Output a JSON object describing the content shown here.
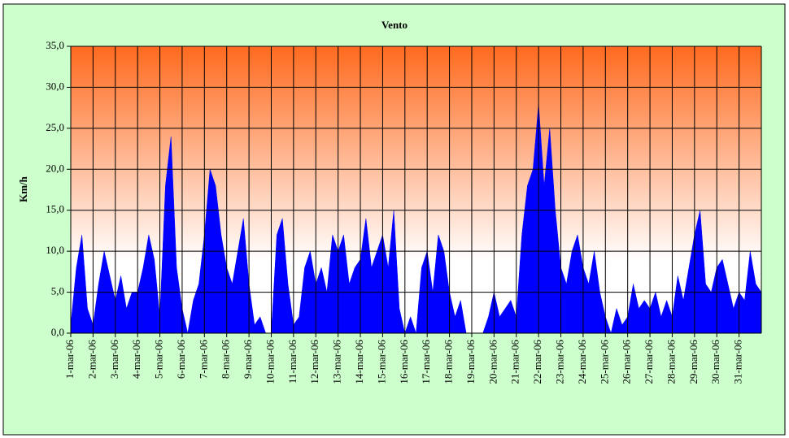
{
  "chart_data": {
    "type": "area",
    "title": "Vento",
    "ylabel": "Km/h",
    "series": [
      {
        "name": "Vento",
        "color": "#0000ff",
        "x": [
          1,
          1.25,
          1.5,
          1.75,
          2,
          2.25,
          2.5,
          2.75,
          3,
          3.25,
          3.5,
          3.75,
          4,
          4.25,
          4.5,
          4.75,
          5,
          5.25,
          5.5,
          5.75,
          6,
          6.25,
          6.5,
          6.75,
          7,
          7.25,
          7.5,
          7.75,
          8,
          8.25,
          8.5,
          8.75,
          9,
          9.25,
          9.5,
          9.75,
          10,
          10.25,
          10.5,
          10.75,
          11,
          11.25,
          11.5,
          11.75,
          12,
          12.25,
          12.5,
          12.75,
          13,
          13.25,
          13.5,
          13.75,
          14,
          14.25,
          14.5,
          14.75,
          15,
          15.25,
          15.5,
          15.75,
          16,
          16.25,
          16.5,
          16.75,
          17,
          17.25,
          17.5,
          17.75,
          18,
          18.25,
          18.5,
          18.75,
          19,
          19.25,
          19.5,
          19.75,
          20,
          20.25,
          20.5,
          20.75,
          21,
          21.25,
          21.5,
          21.75,
          22,
          22.25,
          22.5,
          22.75,
          23,
          23.25,
          23.5,
          23.75,
          24,
          24.25,
          24.5,
          24.75,
          25,
          25.25,
          25.5,
          25.75,
          26,
          26.25,
          26.5,
          26.75,
          27,
          27.25,
          27.5,
          27.75,
          28,
          28.25,
          28.5,
          28.75,
          29,
          29.25,
          29.5,
          29.75,
          30,
          30.25,
          30.5,
          30.75,
          31,
          31.25,
          31.5,
          31.75,
          32
        ],
        "values": [
          1,
          8,
          12,
          3,
          1,
          6,
          10,
          7,
          4,
          7,
          3,
          5,
          5,
          8,
          12,
          9,
          2,
          18,
          24,
          8,
          3,
          0,
          4,
          6,
          12,
          20,
          18,
          12,
          8,
          6,
          10,
          14,
          6,
          1,
          2,
          0,
          0,
          12,
          14,
          6,
          1,
          2,
          8,
          10,
          6,
          8,
          5,
          12,
          10,
          12,
          6,
          8,
          9,
          14,
          8,
          10,
          12,
          8,
          15,
          3,
          0,
          2,
          0,
          8,
          10,
          5,
          12,
          10,
          5,
          2,
          4,
          0,
          0,
          0,
          0,
          2,
          5,
          2,
          3,
          4,
          2,
          12,
          18,
          20,
          28,
          18,
          25,
          15,
          8,
          6,
          10,
          12,
          8,
          6,
          10,
          5,
          2,
          0,
          3,
          1,
          2,
          6,
          3,
          4,
          3,
          5,
          2,
          4,
          2,
          7,
          4,
          8,
          12,
          15,
          6,
          5,
          8,
          9,
          6,
          3,
          5,
          4,
          10,
          6,
          5
        ]
      }
    ],
    "xlim": [
      1,
      32
    ],
    "xticks": [
      {
        "value": 1,
        "label": "1-mar-06"
      },
      {
        "value": 2,
        "label": "2-mar-06"
      },
      {
        "value": 3,
        "label": "3-mar-06"
      },
      {
        "value": 4,
        "label": "4-mar-06"
      },
      {
        "value": 5,
        "label": "5-mar-06"
      },
      {
        "value": 6,
        "label": "6-mar-06"
      },
      {
        "value": 7,
        "label": "7-mar-06"
      },
      {
        "value": 8,
        "label": "8-mar-06"
      },
      {
        "value": 9,
        "label": "9-mar-06"
      },
      {
        "value": 10,
        "label": "10-mar-06"
      },
      {
        "value": 11,
        "label": "11-mar-06"
      },
      {
        "value": 12,
        "label": "12-mar-06"
      },
      {
        "value": 13,
        "label": "13-mar-06"
      },
      {
        "value": 14,
        "label": "14-mar-06"
      },
      {
        "value": 15,
        "label": "15-mar-06"
      },
      {
        "value": 16,
        "label": "16-mar-06"
      },
      {
        "value": 17,
        "label": "17-mar-06"
      },
      {
        "value": 18,
        "label": "18-mar-06"
      },
      {
        "value": 19,
        "label": "19-mar-06"
      },
      {
        "value": 20,
        "label": "20-mar-06"
      },
      {
        "value": 21,
        "label": "21-mar-06"
      },
      {
        "value": 22,
        "label": "22-mar-06"
      },
      {
        "value": 23,
        "label": "23-mar-06"
      },
      {
        "value": 24,
        "label": "24-mar-06"
      },
      {
        "value": 25,
        "label": "25-mar-06"
      },
      {
        "value": 26,
        "label": "26-mar-06"
      },
      {
        "value": 27,
        "label": "27-mar-06"
      },
      {
        "value": 28,
        "label": "28-mar-06"
      },
      {
        "value": 29,
        "label": "29-mar-06"
      },
      {
        "value": 30,
        "label": "30-mar-06"
      },
      {
        "value": 31,
        "label": "31-mar-06"
      }
    ],
    "ylim": [
      0,
      35
    ],
    "yticks": [
      {
        "value": 0,
        "label": "0,0"
      },
      {
        "value": 5,
        "label": "5,0"
      },
      {
        "value": 10,
        "label": "10,0"
      },
      {
        "value": 15,
        "label": "15,0"
      },
      {
        "value": 20,
        "label": "20,0"
      },
      {
        "value": 25,
        "label": "25,0"
      },
      {
        "value": 30,
        "label": "30,0"
      },
      {
        "value": 35,
        "label": "35,0"
      }
    ],
    "grid": true
  }
}
